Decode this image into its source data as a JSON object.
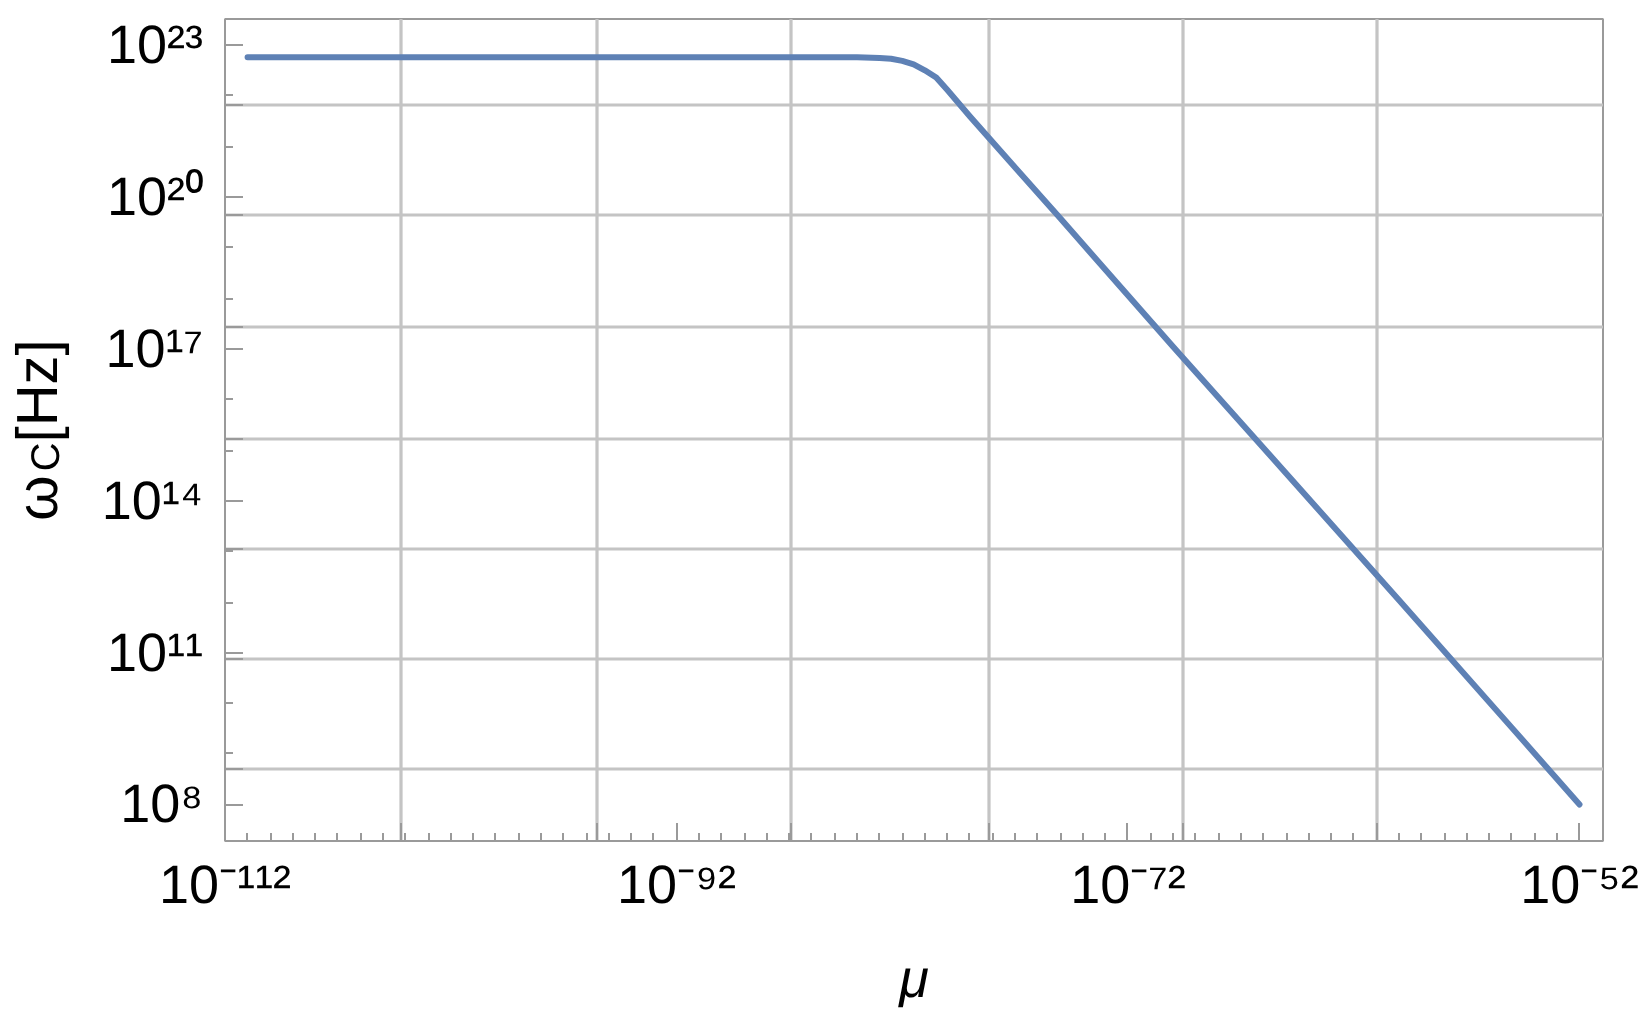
{
  "chart_data": {
    "type": "line",
    "xlabel": "μ",
    "ylabel": "ω$_{C}$[Hz]",
    "log": "xy",
    "grid": true,
    "xlim": [
      1e-112,
      1.1e-51
    ],
    "ylim": [
      19000000.0,
      3.3e+23
    ],
    "xticks": [
      {
        "value": 1e-112,
        "label": "10⁻¹¹²"
      },
      {
        "value": 6.5e-105,
        "label": null
      },
      {
        "value": 3.2e-96,
        "label": null
      },
      {
        "value": 1e-92,
        "label": "10⁻⁹²"
      },
      {
        "value": 1.3e-87,
        "label": null
      },
      {
        "value": 6.3e-79,
        "label": null
      },
      {
        "value": 1e-72,
        "label": "10⁻⁷²"
      },
      {
        "value": 2.6e-70,
        "label": null
      },
      {
        "value": 1.1e-61,
        "label": null
      },
      {
        "value": 1e-52,
        "label": "10⁻⁵²"
      }
    ],
    "yticks": [
      {
        "value": 100000000.0,
        "label": "10⁸"
      },
      {
        "value": 500000000.0,
        "label": null
      },
      {
        "value": 76000000000.0,
        "label": null
      },
      {
        "value": 100000000000.0,
        "label": "10¹¹"
      },
      {
        "value": 11000000000000.0,
        "label": null
      },
      {
        "value": 100000000000000.0,
        "label": "10¹⁴"
      },
      {
        "value": 1700000000000000.0,
        "label": null
      },
      {
        "value": 1e+17,
        "label": "10¹⁷"
      },
      {
        "value": 2.8e+17,
        "label": null
      },
      {
        "value": 4.3e+19,
        "label": null
      },
      {
        "value": 1e+20,
        "label": "10²⁰"
      },
      {
        "value": 6.5e+21,
        "label": null
      },
      {
        "value": 1e+23,
        "label": "10²³"
      }
    ],
    "x": [
      1e-111,
      1e-100,
      1e-90,
      1e-84,
      1e-83,
      3.2e-83,
      1e-82,
      3.2e-82,
      1e-81,
      3.2e-81,
      1e-80,
      1e-79,
      1e-75,
      1e-70,
      1e-65,
      1e-60,
      1e-55,
      1e-52
    ],
    "series": [
      {
        "color": "#5e81b5",
        "values": [
          5.8e+22,
          5.8e+22,
          5.8e+22,
          5.8e+22,
          5.6e+22,
          5.4e+22,
          4.9e+22,
          4.2e+22,
          3.2e+22,
          2.3e+22,
          1.3e+22,
          3.9e+21,
          3.8e+19,
          1.1e+17,
          350000000000000.0,
          1100000000000.0,
          3300000000.0,
          100000000.0
        ]
      }
    ]
  }
}
